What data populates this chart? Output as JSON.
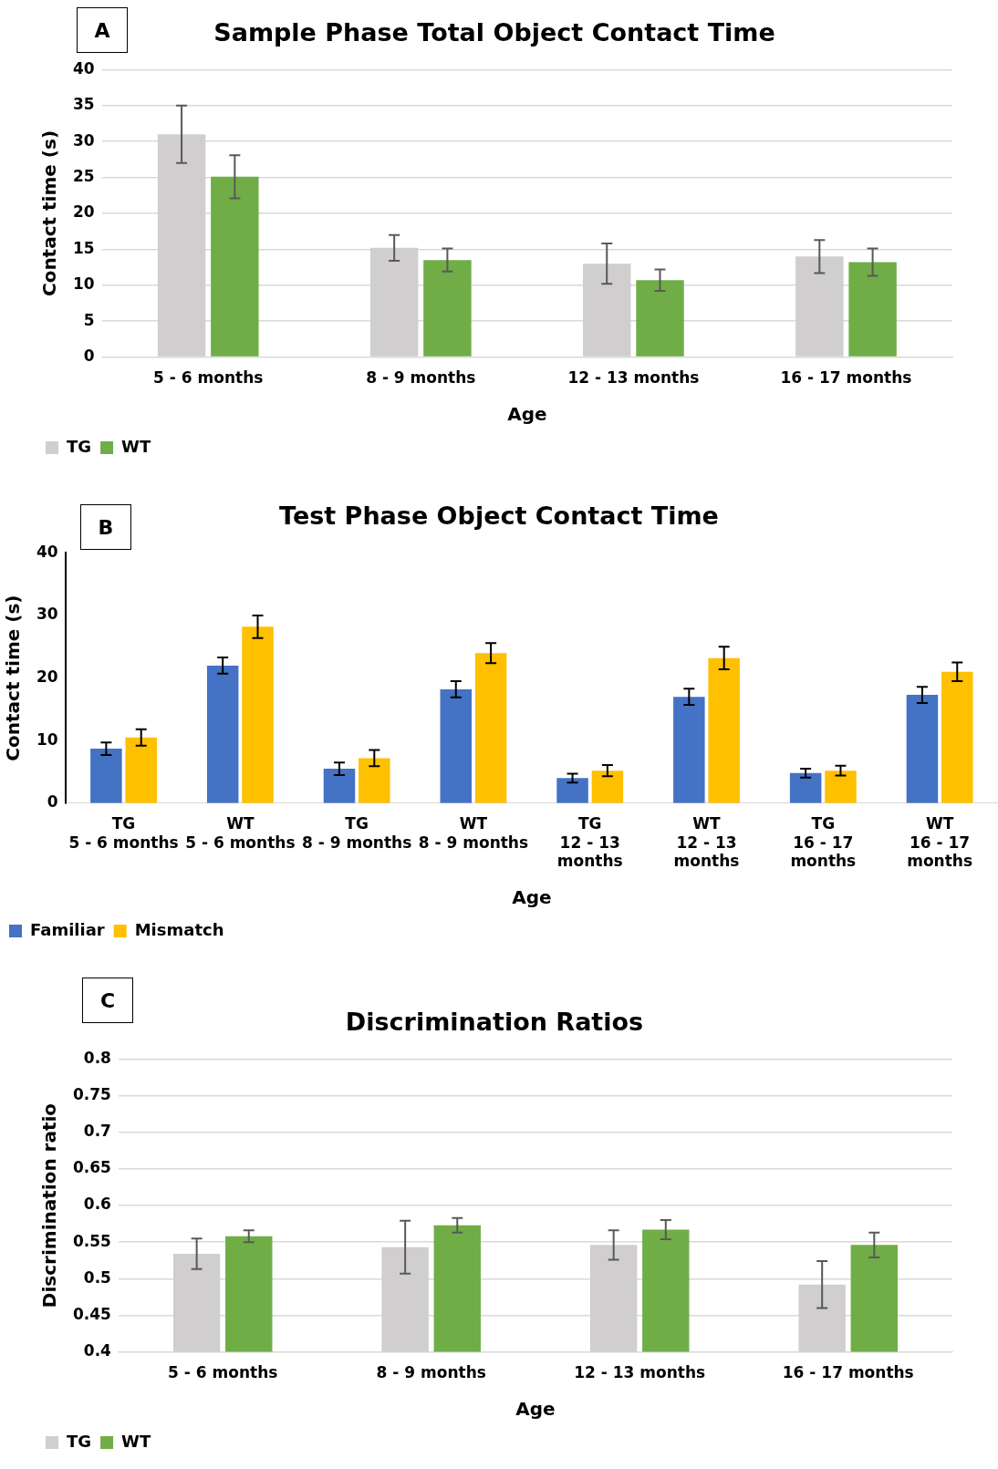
{
  "chart_data": [
    {
      "type": "bar",
      "title": "Sample Phase Total Object Contact Time",
      "xlabel": "Age",
      "ylabel": "Contact time (s)",
      "annotations": [
        "A"
      ],
      "categories": [
        "5 - 6 months",
        "8 - 9 months",
        "12 - 13 months",
        "16 - 17 months"
      ],
      "series": [
        {
          "name": "TG",
          "color": "#d0cece",
          "values": [
            31,
            15.2,
            13,
            14
          ],
          "errors": [
            4,
            1.8,
            2.8,
            2.3
          ]
        },
        {
          "name": "WT",
          "color": "#70ad47",
          "values": [
            25.1,
            13.5,
            10.7,
            13.2
          ],
          "errors": [
            3,
            1.6,
            1.5,
            1.9
          ]
        }
      ],
      "ylim": [
        0,
        40
      ],
      "yticks": [
        0,
        5,
        10,
        15,
        20,
        25,
        30,
        35,
        40
      ],
      "grid": "y",
      "legend": "bottom left"
    },
    {
      "type": "bar",
      "title": "Test Phase Object Contact Time",
      "xlabel": "Age",
      "ylabel": "Contact time (s)",
      "annotations": [
        "B"
      ],
      "categories": [
        "TG\n5 - 6 months",
        "WT\n5 - 6 months",
        "TG\n8 - 9 months",
        "WT\n8 - 9 months",
        "TG\n12 - 13\nmonths",
        "WT\n12 - 13\nmonths",
        "TG\n16 - 17\nmonths",
        "WT\n16 - 17\nmonths"
      ],
      "series": [
        {
          "name": "Familiar",
          "color": "#4472c4",
          "values": [
            8.7,
            22,
            5.5,
            18.2,
            4,
            17,
            4.8,
            17.3
          ],
          "errors": [
            1,
            1.3,
            1,
            1.3,
            0.7,
            1.3,
            0.7,
            1.3
          ]
        },
        {
          "name": "Mismatch",
          "color": "#ffc000",
          "values": [
            10.5,
            28.2,
            7.2,
            24,
            5.2,
            23.2,
            5.2,
            21
          ],
          "errors": [
            1.3,
            1.8,
            1.3,
            1.6,
            0.9,
            1.8,
            0.8,
            1.5
          ]
        }
      ],
      "ylim": [
        0,
        40
      ],
      "yticks": [
        0,
        10,
        20,
        30,
        40
      ],
      "grid": false,
      "legend": "bottom left"
    },
    {
      "type": "bar",
      "title": "Discrimination Ratios",
      "xlabel": "Age",
      "ylabel": "Discrimination ratio",
      "annotations": [
        "C"
      ],
      "categories": [
        "5 - 6 months",
        "8 - 9 months",
        "12 - 13 months",
        "16 - 17 months"
      ],
      "series": [
        {
          "name": "TG",
          "color": "#d0cece",
          "values": [
            0.534,
            0.543,
            0.546,
            0.492
          ],
          "errors": [
            0.021,
            0.036,
            0.02,
            0.032
          ]
        },
        {
          "name": "WT",
          "color": "#70ad47",
          "values": [
            0.558,
            0.573,
            0.567,
            0.546
          ],
          "errors": [
            0.008,
            0.01,
            0.013,
            0.017
          ]
        }
      ],
      "ylim": [
        0.4,
        0.8
      ],
      "yticks": [
        0.4,
        0.45,
        0.5,
        0.55,
        0.6,
        0.65,
        0.7,
        0.75,
        0.8
      ],
      "grid": "y",
      "legend": "bottom left"
    }
  ]
}
